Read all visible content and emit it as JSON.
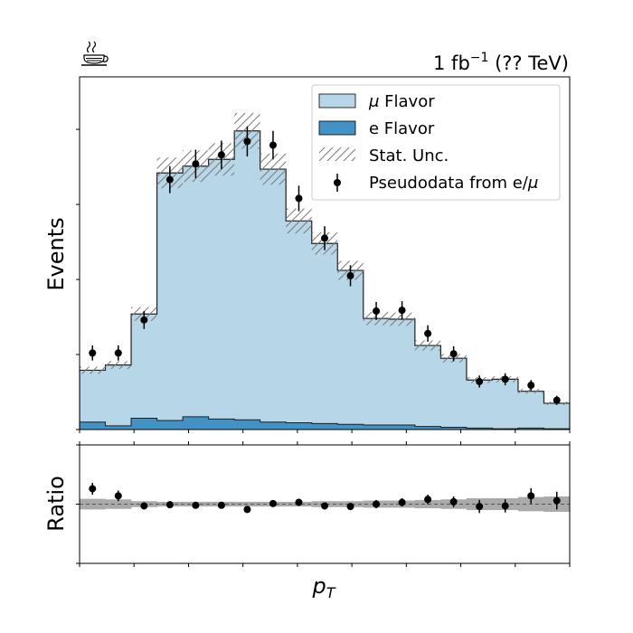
{
  "chart_data": [
    {
      "type": "stacked-step-histogram",
      "title": "",
      "lumi_label": {
        "prefix": "1 fb",
        "superscript": "−1",
        "suffix": " (?? TeV)"
      },
      "ylabel": "Events",
      "xlabel": "p",
      "xlabel_sub": "T",
      "ytick_labels": false,
      "ylim": [
        0,
        47
      ],
      "n_bins": 19,
      "series": [
        {
          "name": "e Flavor",
          "color": "#4292c6",
          "values": [
            1.0,
            0.5,
            1.5,
            1.2,
            1.7,
            1.4,
            1.3,
            1.0,
            0.9,
            0.8,
            0.7,
            0.6,
            0.6,
            0.4,
            0.3,
            0.2,
            0.1,
            0.2,
            0.1
          ]
        },
        {
          "name": "μ Flavor",
          "color": "#b7d7e8",
          "values": [
            6.9,
            8.1,
            13.9,
            33.0,
            33.4,
            34.6,
            38.5,
            33.7,
            26.9,
            24.0,
            20.5,
            14.2,
            14.1,
            10.8,
            9.2,
            6.4,
            6.6,
            4.9,
            3.4
          ]
        }
      ],
      "stat_unc_rel": 0.06,
      "pseudodata": {
        "name": "Pseudodata from e/μ",
        "values": [
          10.2,
          10.2,
          14.6,
          33.3,
          35.4,
          36.6,
          38.4,
          37.9,
          30.8,
          25.5,
          20.5,
          15.8,
          15.9,
          12.8,
          10.1,
          6.4,
          6.7,
          5.9,
          3.9
        ],
        "errors": [
          1.0,
          1.0,
          1.2,
          1.8,
          1.9,
          1.9,
          2.0,
          1.9,
          1.7,
          1.6,
          1.4,
          1.2,
          1.2,
          1.1,
          1.0,
          0.8,
          0.8,
          0.7,
          0.6
        ]
      },
      "legend": {
        "placement": "top-right",
        "entries": [
          {
            "label": "μ Flavor",
            "key": "mu",
            "italic_prefix": "μ",
            "rest": " Flavor"
          },
          {
            "label": "e Flavor",
            "key": "e"
          },
          {
            "label": "Stat. Unc.",
            "key": "unc"
          },
          {
            "label": "Pseudodata from e/μ",
            "key": "data",
            "text": "Pseudodata from e/",
            "italic_suffix": "μ"
          }
        ]
      }
    },
    {
      "type": "ratio-scatter",
      "ylabel": "Ratio",
      "ytick_labels": false,
      "ylim": [
        0.0,
        2.0
      ],
      "reference": 1.0,
      "ratio": [
        1.26,
        1.14,
        0.97,
        0.99,
        0.98,
        0.98,
        0.91,
        1.01,
        1.03,
        0.97,
        0.96,
        1.0,
        1.03,
        1.08,
        1.04,
        0.96,
        0.97,
        1.14,
        1.06
      ],
      "errors": [
        0.1,
        0.09,
        0.06,
        0.05,
        0.05,
        0.05,
        0.05,
        0.05,
        0.05,
        0.06,
        0.06,
        0.07,
        0.07,
        0.08,
        0.09,
        0.11,
        0.11,
        0.13,
        0.15
      ],
      "band_halfwidth": [
        0.09,
        0.08,
        0.05,
        0.04,
        0.04,
        0.04,
        0.04,
        0.04,
        0.04,
        0.05,
        0.05,
        0.06,
        0.06,
        0.07,
        0.08,
        0.1,
        0.1,
        0.12,
        0.13
      ],
      "band_color": "#aaaaaa"
    }
  ],
  "coffee_icon": "coffee-cup-icon"
}
